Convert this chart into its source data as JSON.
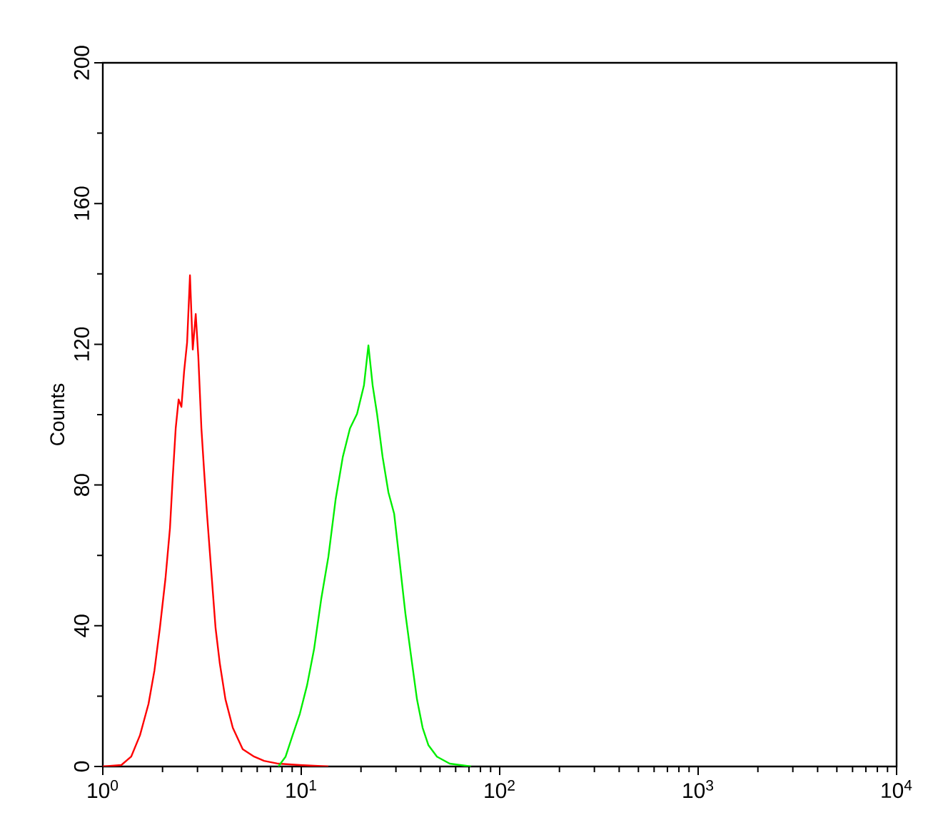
{
  "chart_data": {
    "type": "line",
    "ylabel": "Counts",
    "log": "x",
    "xlim": [
      1,
      10000
    ],
    "ylim": [
      0,
      200
    ],
    "xticks": [
      {
        "value": 1,
        "label": "10$^{0}$"
      },
      {
        "value": 10,
        "label": "10$^{1}$"
      },
      {
        "value": 100,
        "label": "10$^{2}$"
      },
      {
        "value": 1000,
        "label": "10$^{3}$"
      },
      {
        "value": 10000,
        "label": "10$^{4}$"
      }
    ],
    "yticks": [
      0,
      40,
      80,
      120,
      160,
      200
    ],
    "grid": false,
    "series": [
      {
        "color": "#ff0000",
        "x": [
          1.0,
          1.24,
          1.39,
          1.54,
          1.7,
          1.82,
          1.94,
          2.07,
          2.18,
          2.25,
          2.33,
          2.41,
          2.49,
          2.57,
          2.66,
          2.75,
          2.84,
          2.94,
          3.03,
          3.14,
          3.24,
          3.35,
          3.52,
          3.7,
          3.89,
          4.15,
          4.52,
          5.07,
          5.79,
          6.5,
          7.67,
          9.84,
          13.7
        ],
        "values": [
          0,
          0.4,
          2.8,
          8.9,
          17.8,
          27.2,
          39.4,
          53.5,
          67.7,
          81.9,
          96.1,
          104.3,
          102.2,
          112.4,
          120.5,
          139.6,
          118.5,
          128.6,
          116.4,
          96.1,
          84.0,
          71.8,
          55.6,
          39.4,
          29.2,
          19.1,
          11.0,
          4.9,
          2.8,
          1.6,
          0.8,
          0.4,
          0
        ]
      },
      {
        "color": "#00ee00",
        "x": [
          7.67,
          8.34,
          9.05,
          9.84,
          10.7,
          11.6,
          12.6,
          13.7,
          14.9,
          16.2,
          17.6,
          19.1,
          20.7,
          21.8,
          22.9,
          24.1,
          25.7,
          27.5,
          29.4,
          31.4,
          33.5,
          35.8,
          38.3,
          40.9,
          43.7,
          48.3,
          56.0,
          71.8
        ],
        "values": [
          0,
          2.8,
          8.9,
          15.0,
          23.1,
          33.3,
          47.5,
          59.6,
          75.9,
          88.0,
          96.1,
          100.2,
          108.3,
          119.7,
          108.3,
          100.2,
          88.0,
          77.9,
          71.8,
          57.6,
          43.4,
          31.2,
          19.1,
          11.0,
          6.1,
          2.8,
          0.8,
          0
        ]
      }
    ]
  }
}
